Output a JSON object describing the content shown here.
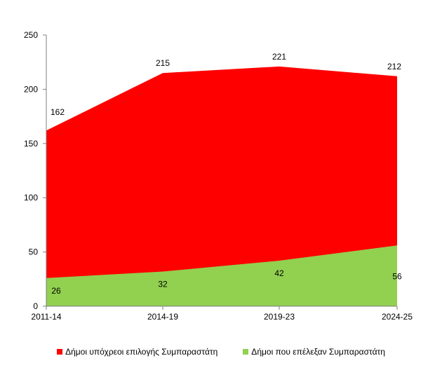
{
  "chart_data": {
    "type": "area",
    "stacked": false,
    "categories": [
      "2011-14",
      "2014-19",
      "2019-23",
      "2024-25"
    ],
    "ylim": [
      0,
      250
    ],
    "yticks": [
      0,
      50,
      100,
      150,
      200,
      250
    ],
    "grid": false,
    "legend_position": "bottom",
    "series": [
      {
        "name": "Δήμοι υπόχρεοι επιλογής Συμπαραστάτη",
        "values": [
          162,
          215,
          221,
          212
        ],
        "color": "#ff0000"
      },
      {
        "name": "Δήμοι που επέλεξαν Συμπαραστάτη",
        "values": [
          26,
          32,
          42,
          56
        ],
        "color": "#92d050"
      }
    ]
  }
}
